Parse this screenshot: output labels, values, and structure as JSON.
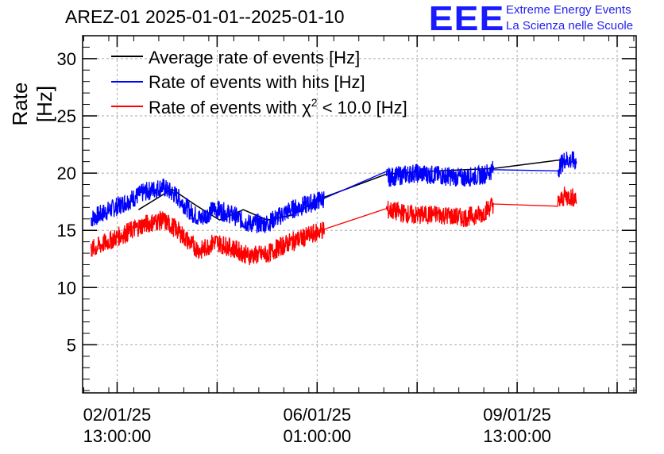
{
  "title": "AREZ-01 2025-01-01--2025-01-10",
  "logo": {
    "mark": "EEE",
    "line1": "Extreme Energy Events",
    "line2": "La Scienza nelle Scuole"
  },
  "colors": {
    "average": "#000000",
    "hits": "#0000ff",
    "chi2": "#ff0000",
    "logo": "#1a1aff"
  },
  "chart_data": {
    "type": "line",
    "title": "AREZ-01 2025-01-01--2025-01-10",
    "xlabel": "",
    "ylabel": "Rate [Hz]",
    "ylim": [
      0.8,
      32
    ],
    "yticks": [
      5,
      10,
      15,
      20,
      25,
      30
    ],
    "x_unit": "hours since 2025-01-01 00:00:00",
    "xlim": [
      22.5,
      255
    ],
    "xtick_labels": [
      {
        "x": 37,
        "line1": "02/01/25",
        "line2": "13:00:00"
      },
      {
        "x": 121,
        "line1": "06/01/25",
        "line2": "01:00:00"
      },
      {
        "x": 205,
        "line1": "09/01/25",
        "line2": "13:00:00"
      }
    ],
    "grid": true,
    "legend_position": "top-left",
    "legend": [
      {
        "label": "Average rate of events [Hz]",
        "color": "#000000"
      },
      {
        "label": "Rate of events with hits [Hz]",
        "color": "#0000ff"
      },
      {
        "label_pre": "Rate of events with ",
        "label_chi": "χ",
        "label_sup": "2",
        "label_post": " < 10.0 [Hz]",
        "color": "#ff0000"
      }
    ],
    "series": [
      {
        "name": "Average rate of events [Hz]",
        "x": [
          46,
          60,
          70,
          80,
          90,
          100,
          110,
          124,
          128,
          150,
          162,
          172,
          195,
          225
        ],
        "values": [
          16.8,
          18.6,
          17.2,
          15.9,
          16.8,
          15.9,
          16.3,
          17.9,
          18.2,
          19.9,
          20.1,
          20.2,
          20.4,
          21.2
        ]
      },
      {
        "name": "Rate of events with hits [Hz]",
        "x": [
          26,
          34,
          42,
          48,
          56,
          62,
          68,
          72,
          78,
          86,
          92,
          100,
          104,
          110,
          116,
          124,
          150,
          162,
          172,
          182,
          190,
          195,
          222,
          225,
          230
        ],
        "values": [
          16.0,
          16.8,
          17.6,
          18.3,
          18.8,
          18.0,
          16.6,
          16.0,
          16.9,
          16.3,
          15.6,
          15.6,
          16.1,
          16.8,
          17.2,
          17.8,
          19.6,
          20.0,
          19.8,
          19.6,
          19.8,
          20.3,
          20.3,
          21.2,
          21.0
        ],
        "noise": 0.85
      },
      {
        "name": "Rate of events with chi2 < 10.0 [Hz]",
        "x": [
          26,
          34,
          42,
          48,
          56,
          62,
          68,
          72,
          78,
          86,
          92,
          100,
          104,
          110,
          116,
          124,
          150,
          162,
          172,
          182,
          190,
          195,
          222,
          225,
          230
        ],
        "values": [
          13.3,
          14.1,
          14.9,
          15.5,
          15.9,
          15.1,
          13.8,
          13.2,
          14.0,
          13.4,
          12.8,
          12.9,
          13.4,
          14.0,
          14.4,
          15.1,
          16.8,
          16.3,
          16.4,
          16.1,
          16.4,
          17.3,
          17.3,
          18.0,
          17.8
        ],
        "noise": 0.85
      }
    ],
    "data_segments": [
      [
        26,
        124
      ],
      [
        150,
        195
      ],
      [
        222,
        230
      ]
    ]
  }
}
